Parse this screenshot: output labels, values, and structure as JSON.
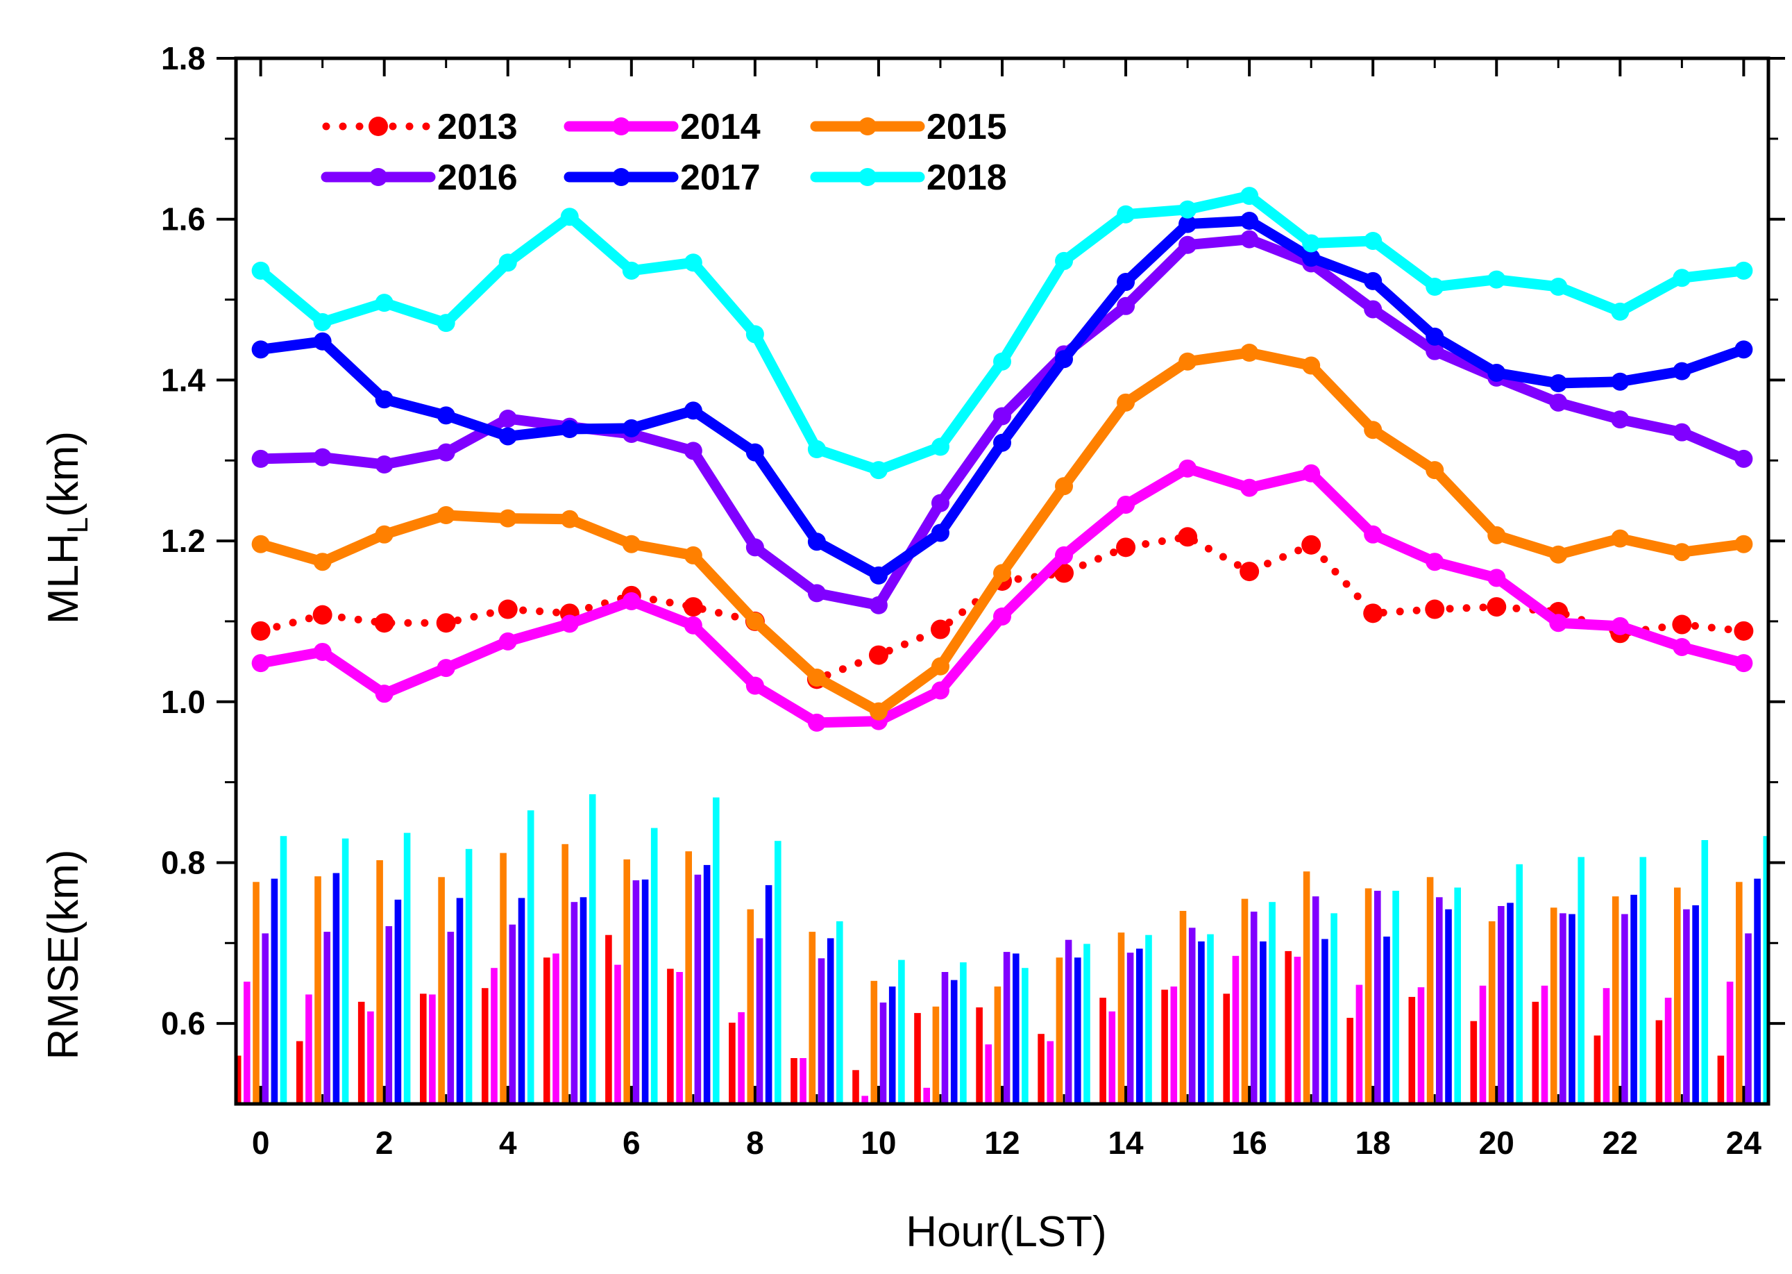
{
  "chart_data": {
    "type": "line",
    "xlabel": "Hour(LST)",
    "ylabel_main": "MLH",
    "ylabel_sub": "L",
    "ylabel_suffix": "(km)",
    "ylabel_bars": "RMSE(km)",
    "xlim": [
      -0.4,
      24.4
    ],
    "ylim": [
      0.5,
      1.8
    ],
    "x_ticks": [
      0,
      2,
      4,
      6,
      8,
      10,
      12,
      14,
      16,
      18,
      20,
      22,
      24
    ],
    "y_ticks": [
      0.6,
      0.8,
      1.0,
      1.2,
      1.4,
      1.6,
      1.8
    ],
    "y_tick_labels": [
      "0.6",
      "0.8",
      "1.0",
      "1.2",
      "1.4",
      "1.6",
      "1.8"
    ],
    "y_label_split": 0.9,
    "legend_position": "top-left",
    "hours": [
      0,
      1,
      2,
      3,
      4,
      5,
      6,
      7,
      8,
      9,
      10,
      11,
      12,
      13,
      14,
      15,
      16,
      17,
      18,
      19,
      20,
      21,
      22,
      23,
      24
    ],
    "series": [
      {
        "name": "2013",
        "color": "#ff0000",
        "style": "dotted",
        "values": [
          1.088,
          1.108,
          1.098,
          1.098,
          1.115,
          1.11,
          1.132,
          1.118,
          1.1,
          1.028,
          1.058,
          1.09,
          1.15,
          1.16,
          1.192,
          1.205,
          1.162,
          1.195,
          1.11,
          1.115,
          1.118,
          1.112,
          1.085,
          1.096,
          1.088
        ]
      },
      {
        "name": "2014",
        "color": "#ff00ff",
        "style": "solid",
        "values": [
          1.048,
          1.062,
          1.01,
          1.042,
          1.075,
          1.097,
          1.125,
          1.095,
          1.02,
          0.974,
          0.976,
          1.014,
          1.106,
          1.182,
          1.245,
          1.29,
          1.266,
          1.284,
          1.208,
          1.174,
          1.154,
          1.098,
          1.094,
          1.068,
          1.048
        ]
      },
      {
        "name": "2015",
        "color": "#ff8000",
        "style": "solid",
        "values": [
          1.196,
          1.174,
          1.208,
          1.232,
          1.228,
          1.227,
          1.196,
          1.182,
          1.1,
          1.03,
          0.988,
          1.044,
          1.16,
          1.268,
          1.372,
          1.423,
          1.434,
          1.418,
          1.338,
          1.288,
          1.207,
          1.183,
          1.203,
          1.186,
          1.196
        ]
      },
      {
        "name": "2016",
        "color": "#8000ff",
        "style": "solid",
        "values": [
          1.302,
          1.304,
          1.295,
          1.31,
          1.352,
          1.342,
          1.333,
          1.312,
          1.192,
          1.135,
          1.12,
          1.247,
          1.355,
          1.432,
          1.492,
          1.568,
          1.575,
          1.545,
          1.488,
          1.436,
          1.403,
          1.372,
          1.351,
          1.335,
          1.302
        ]
      },
      {
        "name": "2017",
        "color": "#0000ff",
        "style": "solid",
        "values": [
          1.438,
          1.448,
          1.376,
          1.356,
          1.33,
          1.339,
          1.34,
          1.362,
          1.31,
          1.199,
          1.157,
          1.21,
          1.322,
          1.426,
          1.522,
          1.594,
          1.598,
          1.552,
          1.523,
          1.454,
          1.409,
          1.396,
          1.398,
          1.411,
          1.438
        ]
      },
      {
        "name": "2018",
        "color": "#00ffff",
        "style": "solid",
        "values": [
          1.536,
          1.472,
          1.496,
          1.471,
          1.546,
          1.603,
          1.536,
          1.546,
          1.457,
          1.314,
          1.288,
          1.317,
          1.423,
          1.548,
          1.606,
          1.612,
          1.629,
          1.57,
          1.573,
          1.516,
          1.525,
          1.516,
          1.485,
          1.527,
          1.536
        ]
      }
    ],
    "bar_series": [
      {
        "name": "2013",
        "color": "#ff0000",
        "values": [
          0.56,
          0.578,
          0.627,
          0.637,
          0.644,
          0.682,
          0.71,
          0.668,
          0.601,
          0.557,
          0.542,
          0.613,
          0.62,
          0.587,
          0.632,
          0.642,
          0.637,
          0.69,
          0.607,
          0.633,
          0.603,
          0.627,
          0.585,
          0.604,
          0.56
        ]
      },
      {
        "name": "2014",
        "color": "#ff00ff",
        "values": [
          0.652,
          0.636,
          0.615,
          0.636,
          0.669,
          0.687,
          0.673,
          0.664,
          0.614,
          0.557,
          0.51,
          0.52,
          0.574,
          0.578,
          0.615,
          0.646,
          0.684,
          0.683,
          0.648,
          0.645,
          0.647,
          0.647,
          0.644,
          0.632,
          0.652
        ]
      },
      {
        "name": "2015",
        "color": "#ff8000",
        "values": [
          0.776,
          0.783,
          0.803,
          0.782,
          0.812,
          0.823,
          0.804,
          0.814,
          0.742,
          0.714,
          0.653,
          0.621,
          0.646,
          0.682,
          0.713,
          0.74,
          0.755,
          0.789,
          0.768,
          0.782,
          0.727,
          0.744,
          0.758,
          0.769,
          0.776
        ]
      },
      {
        "name": "2016",
        "color": "#8000ff",
        "values": [
          0.712,
          0.714,
          0.721,
          0.714,
          0.723,
          0.751,
          0.778,
          0.785,
          0.706,
          0.681,
          0.626,
          0.664,
          0.689,
          0.704,
          0.688,
          0.719,
          0.739,
          0.758,
          0.765,
          0.757,
          0.746,
          0.737,
          0.736,
          0.742,
          0.712
        ]
      },
      {
        "name": "2017",
        "color": "#0000ff",
        "values": [
          0.78,
          0.787,
          0.754,
          0.756,
          0.756,
          0.757,
          0.779,
          0.797,
          0.772,
          0.706,
          0.646,
          0.654,
          0.687,
          0.682,
          0.693,
          0.702,
          0.702,
          0.705,
          0.708,
          0.742,
          0.75,
          0.736,
          0.76,
          0.747,
          0.78
        ]
      },
      {
        "name": "2018",
        "color": "#00ffff",
        "values": [
          0.833,
          0.83,
          0.837,
          0.817,
          0.865,
          0.885,
          0.843,
          0.881,
          0.827,
          0.727,
          0.679,
          0.676,
          0.669,
          0.699,
          0.71,
          0.711,
          0.751,
          0.737,
          0.765,
          0.769,
          0.798,
          0.807,
          0.807,
          0.828,
          0.833
        ]
      }
    ]
  }
}
